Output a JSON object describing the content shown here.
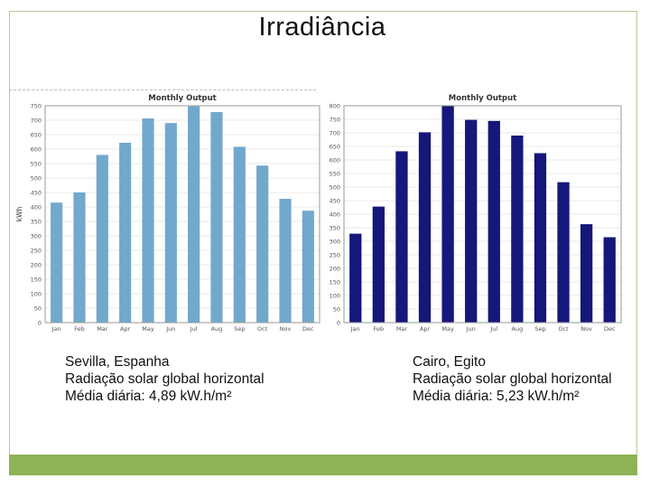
{
  "slide": {
    "title": "Irradiância",
    "accent_color": "#8db356"
  },
  "captions": [
    {
      "location": "Sevilla, Espanha",
      "description": "Radiação solar global horizontal",
      "daily_average": "Média diária: 4,89 kW.h/m²"
    },
    {
      "location": "Cairo, Egito",
      "description": "Radiação solar global horizontal",
      "daily_average": "Média diária: 5,23 kW.h/m²"
    }
  ],
  "chart_data": [
    {
      "type": "bar",
      "title": "Monthly Output",
      "xlabel": "",
      "ylabel": "kWh",
      "categories": [
        "Jan",
        "Feb",
        "Mar",
        "Apr",
        "May",
        "Jun",
        "Jul",
        "Aug",
        "Sep",
        "Oct",
        "Nov",
        "Dec"
      ],
      "values": [
        415,
        450,
        580,
        622,
        706,
        690,
        748,
        728,
        608,
        543,
        428,
        387
      ],
      "ylim": [
        0,
        750
      ],
      "yticks": [
        0,
        50,
        100,
        150,
        200,
        250,
        300,
        350,
        400,
        450,
        500,
        550,
        600,
        650,
        700,
        750
      ],
      "grid": true,
      "bar_color": "#72a8cc"
    },
    {
      "type": "bar",
      "title": "Monthly Output",
      "xlabel": "",
      "ylabel": "",
      "categories": [
        "Jan",
        "Feb",
        "Mar",
        "Apr",
        "May",
        "Jun",
        "Jul",
        "Aug",
        "Sep",
        "Oct",
        "Nov",
        "Dec"
      ],
      "values": [
        328,
        428,
        632,
        702,
        800,
        748,
        744,
        690,
        625,
        518,
        363,
        315
      ],
      "ylim": [
        0,
        800
      ],
      "yticks": [
        0,
        50,
        100,
        150,
        200,
        250,
        300,
        350,
        400,
        450,
        500,
        550,
        600,
        650,
        700,
        750,
        800
      ],
      "grid": true,
      "bar_color": "#15177a"
    }
  ]
}
